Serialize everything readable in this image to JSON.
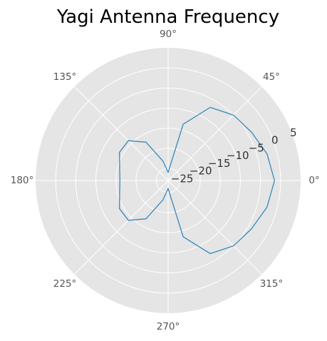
{
  "chart_data": {
    "type": "line",
    "projection": "polar",
    "title": "Yagi Antenna Frequency",
    "angle_unit": "degrees",
    "angle_ticks": [
      {
        "value": 0,
        "label": "0°"
      },
      {
        "value": 45,
        "label": "45°"
      },
      {
        "value": 90,
        "label": "90°"
      },
      {
        "value": 135,
        "label": "135°"
      },
      {
        "value": 180,
        "label": "180°"
      },
      {
        "value": 225,
        "label": "225°"
      },
      {
        "value": 270,
        "label": "270°"
      },
      {
        "value": 315,
        "label": "315°"
      }
    ],
    "radial_ticks": [
      {
        "value": -25,
        "label": "−25"
      },
      {
        "value": -20,
        "label": "−20"
      },
      {
        "value": -15,
        "label": "−15"
      },
      {
        "value": -10,
        "label": "−10"
      },
      {
        "value": -5,
        "label": "−5"
      },
      {
        "value": 0,
        "label": "0"
      },
      {
        "value": 5,
        "label": "5"
      }
    ],
    "rlim": [
      -28,
      5
    ],
    "grid": true,
    "series": [
      {
        "color": "#348ABD",
        "theta": [
          0,
          15,
          30,
          45,
          60,
          75,
          90,
          105,
          120,
          135,
          150,
          165,
          180,
          195,
          210,
          225,
          240,
          255,
          270,
          285,
          300,
          315,
          330,
          345,
          360
        ],
        "r": [
          -1.5,
          -2.5,
          -4,
          -5,
          -7,
          -13.5,
          -26,
          -23,
          -17,
          -14,
          -14,
          -15.5,
          -16,
          -15.5,
          -14,
          -14,
          -17,
          -23,
          -26,
          -13.5,
          -7,
          -5,
          -4,
          -2.5,
          -1.5
        ]
      }
    ],
    "colors": {
      "background": "#e5e5e5",
      "grid": "#ffffff",
      "line": "#348ABD"
    }
  }
}
